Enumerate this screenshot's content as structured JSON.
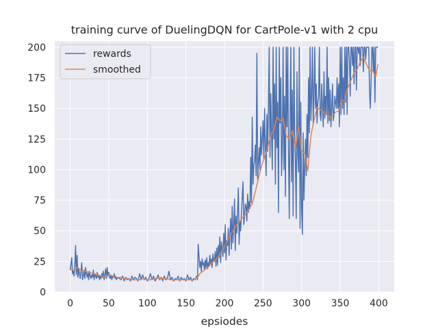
{
  "chart_data": {
    "type": "line",
    "title": "training curve of DuelingDQN for CartPole-v1 with 2 cpu",
    "xlabel": "epsiodes",
    "ylabel": "",
    "xlim": [
      -20,
      420
    ],
    "ylim": [
      0,
      205
    ],
    "xticks": [
      0,
      50,
      100,
      150,
      200,
      250,
      300,
      350,
      400
    ],
    "yticks": [
      0,
      25,
      50,
      75,
      100,
      125,
      150,
      175,
      200
    ],
    "grid": true,
    "legend_position": "top-left",
    "background": "#eaeaf2",
    "series": [
      {
        "name": "rewards",
        "color": "#4c72b0",
        "x": [
          0,
          2,
          3,
          4,
          5,
          6,
          7,
          8,
          9,
          10,
          11,
          12,
          13,
          14,
          15,
          16,
          17,
          18,
          19,
          20,
          21,
          22,
          23,
          24,
          25,
          26,
          27,
          28,
          29,
          30,
          31,
          32,
          33,
          34,
          35,
          36,
          37,
          38,
          39,
          40,
          41,
          42,
          43,
          44,
          45,
          46,
          47,
          48,
          49,
          50,
          51,
          52,
          53,
          54,
          55,
          56,
          57,
          58,
          59,
          60,
          62,
          64,
          66,
          68,
          70,
          72,
          74,
          76,
          78,
          80,
          82,
          84,
          86,
          88,
          90,
          92,
          94,
          96,
          98,
          100,
          102,
          104,
          106,
          108,
          110,
          112,
          114,
          116,
          118,
          120,
          122,
          124,
          126,
          128,
          130,
          132,
          134,
          136,
          138,
          140,
          142,
          144,
          146,
          148,
          150,
          152,
          154,
          156,
          158,
          160,
          162,
          164,
          165,
          166,
          167,
          168,
          169,
          170,
          171,
          172,
          173,
          174,
          175,
          176,
          177,
          178,
          179,
          180,
          181,
          182,
          183,
          184,
          185,
          186,
          187,
          188,
          189,
          190,
          191,
          192,
          193,
          194,
          195,
          196,
          197,
          198,
          199,
          200,
          201,
          202,
          203,
          204,
          205,
          206,
          207,
          208,
          209,
          210,
          211,
          212,
          213,
          214,
          215,
          216,
          217,
          218,
          219,
          220,
          221,
          222,
          223,
          224,
          225,
          226,
          227,
          228,
          229,
          230,
          231,
          232,
          233,
          234,
          235,
          236,
          237,
          238,
          239,
          240,
          241,
          242,
          243,
          244,
          245,
          246,
          247,
          248,
          249,
          250,
          251,
          252,
          253,
          254,
          255,
          256,
          257,
          258,
          259,
          260,
          261,
          262,
          263,
          264,
          265,
          266,
          267,
          268,
          269,
          270,
          271,
          272,
          273,
          274,
          275,
          276,
          277,
          278,
          279,
          280,
          281,
          282,
          283,
          284,
          285,
          286,
          287,
          288,
          289,
          290,
          291,
          292,
          293,
          294,
          295,
          296,
          297,
          298,
          299,
          300,
          301,
          302,
          303,
          304,
          305,
          306,
          307,
          308,
          309,
          310,
          311,
          312,
          313,
          314,
          315,
          316,
          317,
          318,
          319,
          320,
          321,
          322,
          323,
          324,
          325,
          326,
          327,
          328,
          329,
          330,
          331,
          332,
          333,
          334,
          335,
          336,
          337,
          338,
          339,
          340,
          341,
          342,
          343,
          344,
          345,
          346,
          347,
          348,
          349,
          350,
          351,
          352,
          353,
          354,
          355,
          356,
          357,
          358,
          359,
          360,
          361,
          362,
          363,
          364,
          365,
          366,
          367,
          368,
          369,
          370,
          371,
          372,
          373,
          374,
          375,
          376,
          377,
          378,
          379,
          380,
          381,
          382,
          383,
          384,
          385,
          386,
          387,
          388,
          389,
          390,
          391,
          392,
          393,
          394,
          395,
          396,
          397,
          398,
          399
        ],
        "values": [
          18,
          28,
          15,
          17,
          13,
          22,
          38,
          14,
          30,
          12,
          19,
          15,
          11,
          17,
          24,
          10,
          13,
          18,
          11,
          20,
          15,
          12,
          16,
          10,
          17,
          13,
          11,
          14,
          12,
          18,
          10,
          15,
          13,
          11,
          16,
          12,
          14,
          10,
          13,
          11,
          15,
          12,
          17,
          10,
          14,
          19,
          11,
          20,
          13,
          16,
          12,
          11,
          14,
          10,
          13,
          12,
          15,
          11,
          13,
          10,
          12,
          11,
          10,
          13,
          9,
          12,
          10,
          11,
          9,
          13,
          10,
          12,
          11,
          9,
          15,
          10,
          14,
          10,
          12,
          9,
          11,
          15,
          10,
          13,
          9,
          11,
          14,
          10,
          12,
          9,
          13,
          10,
          11,
          17,
          10,
          12,
          9,
          11,
          10,
          13,
          9,
          12,
          10,
          11,
          9,
          14,
          10,
          12,
          9,
          11,
          10,
          13,
          10,
          39,
          29,
          20,
          25,
          17,
          27,
          22,
          24,
          18,
          26,
          20,
          28,
          19,
          24,
          21,
          30,
          23,
          27,
          20,
          31,
          26,
          25,
          33,
          21,
          36,
          22,
          38,
          28,
          45,
          24,
          41,
          35,
          29,
          48,
          32,
          55,
          26,
          42,
          38,
          52,
          30,
          47,
          60,
          35,
          70,
          40,
          55,
          76,
          34,
          62,
          48,
          67,
          85,
          39,
          58,
          50,
          65,
          78,
          90,
          55,
          62,
          72,
          70,
          58,
          80,
          65,
          74,
          68,
          110,
          73,
          143,
          88,
          102,
          108,
          120,
          95,
          195,
          92,
          105,
          118,
          100,
          135,
          112,
          125,
          140,
          108,
          150,
          120,
          95,
          145,
          115,
          152,
          200,
          110,
          162,
          130,
          100,
          200,
          125,
          170,
          88,
          200,
          118,
          155,
          65,
          200,
          138,
          175,
          95,
          120,
          200,
          100,
          160,
          78,
          200,
          135,
          200,
          115,
          60,
          145,
          200,
          90,
          165,
          62,
          200,
          130,
          105,
          60,
          180,
          112,
          98,
          200,
          52,
          155,
          68,
          47,
          130,
          75,
          100,
          125,
          95,
          145,
          110,
          175,
          130,
          200,
          140,
          160,
          200,
          138,
          160,
          200,
          150,
          170,
          138,
          155,
          160,
          200,
          145,
          140,
          170,
          150,
          135,
          180,
          142,
          160,
          145,
          200,
          138,
          175,
          140,
          165,
          135,
          150,
          170,
          140,
          145,
          160,
          155,
          150,
          175,
          150,
          170,
          135,
          200,
          145,
          200,
          150,
          175,
          145,
          200,
          155,
          200,
          145,
          200,
          200,
          190,
          160,
          200,
          200,
          185,
          200,
          170,
          200,
          200,
          165,
          200,
          200,
          195,
          200,
          185,
          200,
          200,
          200,
          180,
          200,
          200,
          190,
          200,
          200,
          200,
          200,
          165,
          150,
          170,
          200,
          200,
          180,
          200,
          155,
          200,
          200,
          200,
          200
        ]
      },
      {
        "name": "smoothed",
        "color": "#dd8452",
        "x": [
          0,
          5,
          10,
          15,
          20,
          25,
          30,
          35,
          40,
          45,
          50,
          55,
          60,
          65,
          70,
          75,
          80,
          85,
          90,
          95,
          100,
          105,
          110,
          115,
          120,
          125,
          130,
          135,
          140,
          145,
          150,
          155,
          160,
          165,
          168,
          172,
          176,
          180,
          184,
          188,
          192,
          196,
          200,
          204,
          208,
          212,
          216,
          220,
          224,
          228,
          232,
          236,
          240,
          244,
          248,
          252,
          256,
          260,
          264,
          268,
          272,
          276,
          280,
          284,
          288,
          292,
          296,
          300,
          304,
          308,
          312,
          316,
          320,
          324,
          328,
          332,
          336,
          340,
          344,
          348,
          352,
          356,
          360,
          364,
          368,
          372,
          376,
          380,
          384,
          388,
          392,
          396,
          399
        ],
        "values": [
          18,
          18,
          20,
          17,
          17,
          16,
          15,
          14,
          13,
          13,
          14,
          13,
          12,
          12,
          11,
          11,
          10,
          10,
          10,
          11,
          10,
          10,
          11,
          11,
          11,
          11,
          10,
          10,
          10,
          10,
          10,
          10,
          10,
          12,
          15,
          17,
          19,
          21,
          24,
          26,
          29,
          33,
          37,
          42,
          47,
          51,
          55,
          58,
          61,
          64,
          68,
          72,
          82,
          93,
          103,
          110,
          118,
          128,
          132,
          143,
          140,
          142,
          128,
          124,
          132,
          118,
          136,
          115,
          113,
          99,
          128,
          140,
          151,
          149,
          147,
          145,
          143,
          144,
          147,
          148,
          156,
          157,
          167,
          173,
          179,
          182,
          188,
          192,
          186,
          181,
          181,
          176,
          186
        ]
      }
    ]
  }
}
